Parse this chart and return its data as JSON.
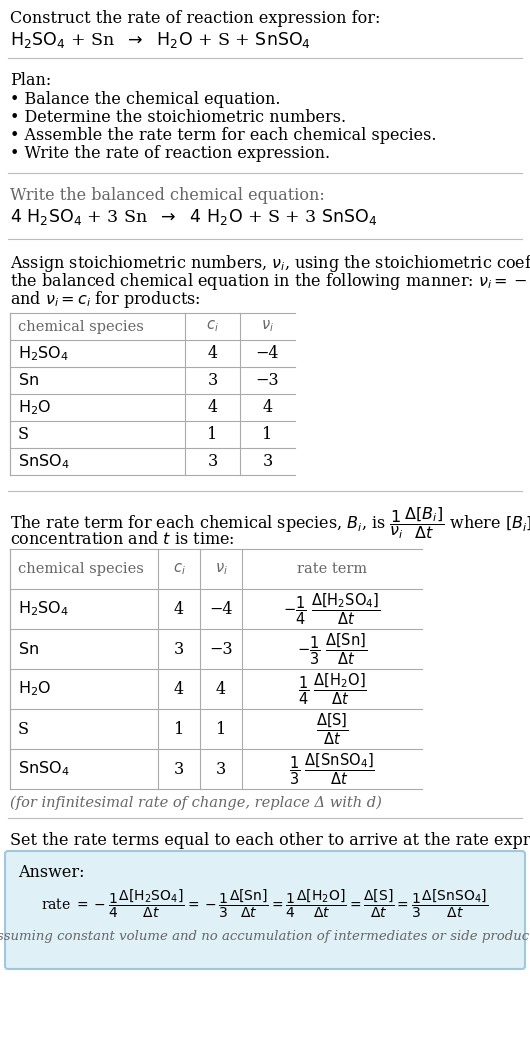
{
  "bg_color": "#ffffff",
  "text_color": "#000000",
  "gray_text": "#666666",
  "answer_bg": "#dff0f7",
  "answer_border": "#a0c8dc",
  "title_line1": "Construct the rate of reaction expression for:",
  "plan_header": "Plan:",
  "plan_items": [
    "• Balance the chemical equation.",
    "• Determine the stoichiometric numbers.",
    "• Assemble the rate term for each chemical species.",
    "• Write the rate of reaction expression."
  ],
  "balanced_header": "Write the balanced chemical equation:",
  "stoich_intro_lines": [
    "Assign stoichiometric numbers, $\\nu_i$, using the stoichiometric coefficients, $c_i$, from",
    "the balanced chemical equation in the following manner: $\\nu_i = -c_i$ for reactants",
    "and $\\nu_i = c_i$ for products:"
  ],
  "table1_rows": [
    [
      "$\\mathrm{H_2SO_4}$",
      "4",
      "−4"
    ],
    [
      "$\\mathrm{Sn}$",
      "3",
      "−3"
    ],
    [
      "$\\mathrm{H_2O}$",
      "4",
      "4"
    ],
    [
      "S",
      "1",
      "1"
    ],
    [
      "$\\mathrm{SnSO_4}$",
      "3",
      "3"
    ]
  ],
  "table2_rows": [
    [
      "$\\mathrm{H_2SO_4}$",
      "4",
      "−4"
    ],
    [
      "$\\mathrm{Sn}$",
      "3",
      "−3"
    ],
    [
      "$\\mathrm{H_2O}$",
      "4",
      "4"
    ],
    [
      "S",
      "1",
      "1"
    ],
    [
      "$\\mathrm{SnSO_4}$",
      "3",
      "3"
    ]
  ],
  "infinitesimal_note": "(for infinitesimal rate of change, replace Δ with d)",
  "set_equal_text": "Set the rate terms equal to each other to arrive at the rate expression:",
  "answer_label": "Answer:",
  "answer_note": "(assuming constant volume and no accumulation of intermediates or side products)",
  "font_size": 11.5,
  "small_font": 10.5
}
